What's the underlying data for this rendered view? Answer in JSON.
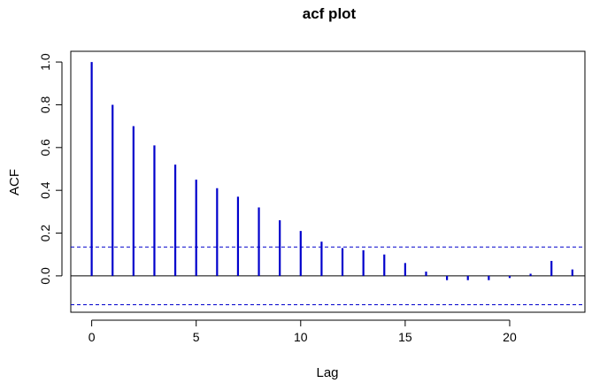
{
  "chart_data": {
    "type": "bar",
    "title": "acf plot",
    "xlabel": "Lag",
    "ylabel": "ACF",
    "xlim": [
      -1,
      23.6
    ],
    "ylim": [
      -0.17,
      1.05
    ],
    "x_ticks": [
      0,
      5,
      10,
      15,
      20
    ],
    "x_tick_labels": [
      "0",
      "5",
      "10",
      "15",
      "20"
    ],
    "y_ticks": [
      0.0,
      0.2,
      0.4,
      0.6,
      0.8,
      1.0
    ],
    "y_tick_labels": [
      "0.0",
      "0.2",
      "0.4",
      "0.6",
      "0.8",
      "1.0"
    ],
    "lags": [
      0,
      1,
      2,
      3,
      4,
      5,
      6,
      7,
      8,
      9,
      10,
      11,
      12,
      13,
      14,
      15,
      16,
      17,
      18,
      19,
      20,
      21,
      22,
      23
    ],
    "values": [
      1.0,
      0.8,
      0.7,
      0.61,
      0.52,
      0.45,
      0.41,
      0.37,
      0.32,
      0.26,
      0.21,
      0.16,
      0.13,
      0.12,
      0.1,
      0.06,
      0.02,
      -0.02,
      -0.02,
      -0.02,
      -0.01,
      0.01,
      0.07,
      0.03
    ],
    "confidence_bound": 0.135,
    "colors": {
      "bars": "#0000cc",
      "ci": "#0000cc",
      "zero": "#000000"
    },
    "grid": false
  }
}
